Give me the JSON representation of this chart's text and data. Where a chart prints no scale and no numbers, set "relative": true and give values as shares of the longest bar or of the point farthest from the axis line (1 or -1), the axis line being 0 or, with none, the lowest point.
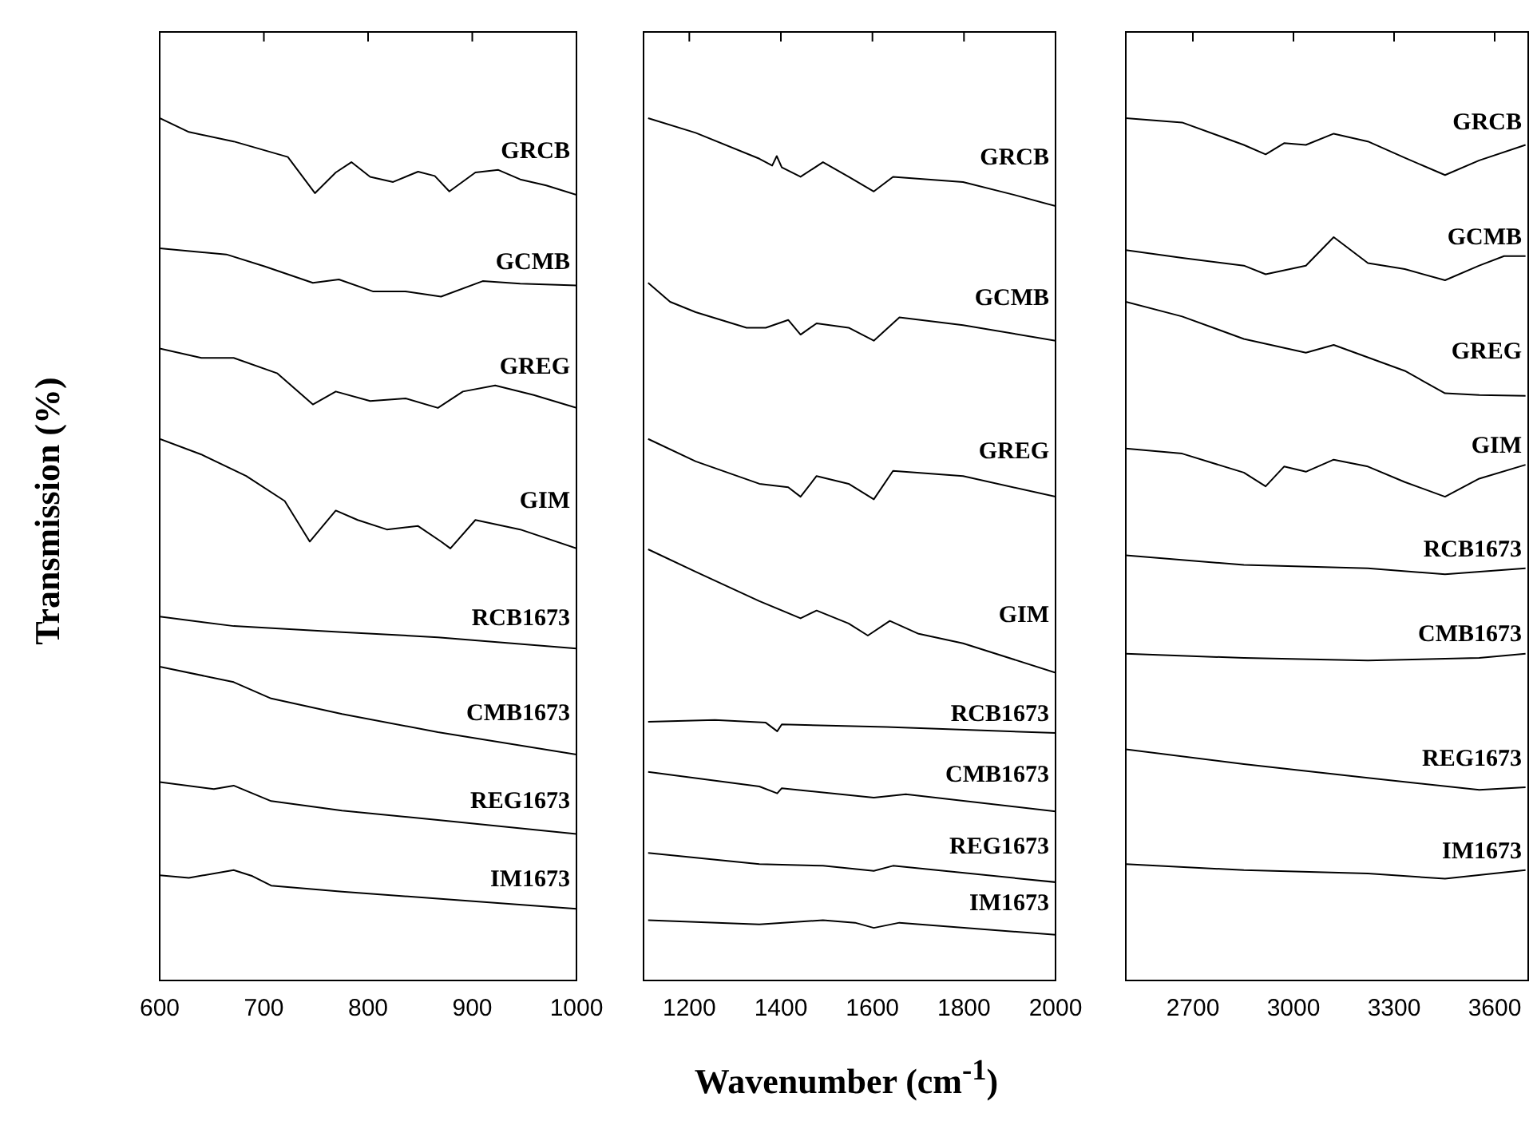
{
  "chart_data": [
    {
      "type": "line",
      "relative": true,
      "ylabel": "Transmission (%)",
      "xlim": [
        600,
        1000
      ],
      "xticks": [
        600,
        700,
        800,
        900,
        1000
      ],
      "grid": false,
      "legend": false,
      "series": [
        {
          "name": "GRCB",
          "color": "#000000",
          "x": [
            600,
            628,
            671,
            723,
            749,
            769,
            784,
            802,
            824,
            848,
            864,
            878,
            903,
            925,
            946,
            971,
            1000
          ],
          "values": [
            1.0,
            0.984,
            0.973,
            0.955,
            0.913,
            0.937,
            0.949,
            0.932,
            0.926,
            0.938,
            0.933,
            0.915,
            0.937,
            0.94,
            0.929,
            0.922,
            0.911
          ]
        },
        {
          "name": "GCMB",
          "color": "#000000",
          "x": [
            600,
            664,
            701,
            747,
            772,
            805,
            836,
            870,
            910,
            946,
            1000
          ],
          "values": [
            0.849,
            0.842,
            0.828,
            0.809,
            0.813,
            0.799,
            0.799,
            0.793,
            0.811,
            0.808,
            0.806
          ]
        },
        {
          "name": "GREG",
          "color": "#000000",
          "x": [
            600,
            640,
            671,
            713,
            747,
            769,
            802,
            836,
            867,
            891,
            922,
            959,
            1000
          ],
          "values": [
            0.733,
            0.722,
            0.722,
            0.704,
            0.668,
            0.683,
            0.672,
            0.675,
            0.664,
            0.683,
            0.69,
            0.679,
            0.664
          ]
        },
        {
          "name": "GIM",
          "color": "#000000",
          "x": [
            600,
            640,
            683,
            720,
            744,
            769,
            790,
            818,
            848,
            870,
            879,
            903,
            946,
            1000
          ],
          "values": [
            0.628,
            0.61,
            0.585,
            0.556,
            0.509,
            0.545,
            0.534,
            0.523,
            0.527,
            0.509,
            0.501,
            0.534,
            0.523,
            0.501
          ]
        },
        {
          "name": "RCB1673",
          "color": "#000000",
          "x": [
            600,
            671,
            775,
            867,
            1000
          ],
          "values": [
            0.422,
            0.411,
            0.404,
            0.398,
            0.385
          ]
        },
        {
          "name": "CMB1673",
          "color": "#000000",
          "x": [
            600,
            671,
            707,
            775,
            867,
            1000
          ],
          "values": [
            0.364,
            0.346,
            0.327,
            0.309,
            0.288,
            0.262
          ]
        },
        {
          "name": "REG1673",
          "color": "#000000",
          "x": [
            600,
            652,
            671,
            707,
            775,
            867,
            1000
          ],
          "values": [
            0.23,
            0.222,
            0.226,
            0.208,
            0.197,
            0.186,
            0.17
          ]
        },
        {
          "name": "IM1673",
          "color": "#000000",
          "x": [
            600,
            628,
            671,
            689,
            707,
            775,
            867,
            1000
          ],
          "values": [
            0.122,
            0.119,
            0.128,
            0.121,
            0.11,
            0.103,
            0.095,
            0.083
          ]
        }
      ]
    },
    {
      "type": "line",
      "relative": true,
      "xlabel": "Wavenumber (cm$^{-1}$)",
      "xlim": [
        1100,
        2000
      ],
      "xticks": [
        1200,
        1400,
        1600,
        1800,
        2000
      ],
      "grid": false,
      "legend": false,
      "series": [
        {
          "name": "GRCB",
          "color": "#000000",
          "x": [
            1110,
            1214,
            1353,
            1381,
            1391,
            1402,
            1443,
            1492,
            1548,
            1603,
            1645,
            1798,
            1910,
            2000
          ],
          "values": [
            1.0,
            0.983,
            0.953,
            0.945,
            0.956,
            0.943,
            0.932,
            0.949,
            0.932,
            0.915,
            0.932,
            0.926,
            0.911,
            0.898
          ]
        },
        {
          "name": "GCMB",
          "color": "#000000",
          "x": [
            1110,
            1158,
            1214,
            1325,
            1367,
            1416,
            1443,
            1478,
            1548,
            1603,
            1659,
            1798,
            2000
          ],
          "values": [
            0.809,
            0.787,
            0.775,
            0.757,
            0.757,
            0.766,
            0.749,
            0.762,
            0.757,
            0.742,
            0.769,
            0.76,
            0.742
          ]
        },
        {
          "name": "GREG",
          "color": "#000000",
          "x": [
            1110,
            1214,
            1353,
            1416,
            1443,
            1478,
            1548,
            1603,
            1645,
            1798,
            2000
          ],
          "values": [
            0.628,
            0.602,
            0.576,
            0.572,
            0.561,
            0.585,
            0.576,
            0.558,
            0.591,
            0.585,
            0.561
          ]
        },
        {
          "name": "GIM",
          "color": "#000000",
          "x": [
            1110,
            1214,
            1353,
            1443,
            1478,
            1548,
            1590,
            1638,
            1701,
            1798,
            2000
          ],
          "values": [
            0.5,
            0.474,
            0.44,
            0.42,
            0.429,
            0.414,
            0.4,
            0.417,
            0.402,
            0.391,
            0.357
          ]
        },
        {
          "name": "RCB1673",
          "color": "#000000",
          "x": [
            1110,
            1256,
            1367,
            1392,
            1402,
            1631,
            2000
          ],
          "values": [
            0.3,
            0.302,
            0.299,
            0.289,
            0.297,
            0.294,
            0.287
          ]
        },
        {
          "name": "CMB1673",
          "color": "#000000",
          "x": [
            1110,
            1353,
            1392,
            1402,
            1603,
            1673,
            2000
          ],
          "values": [
            0.242,
            0.225,
            0.217,
            0.223,
            0.212,
            0.216,
            0.196
          ]
        },
        {
          "name": "REG1673",
          "color": "#000000",
          "x": [
            1110,
            1353,
            1492,
            1603,
            1645,
            2000
          ],
          "values": [
            0.148,
            0.135,
            0.133,
            0.127,
            0.133,
            0.114
          ]
        },
        {
          "name": "IM1673",
          "color": "#000000",
          "x": [
            1110,
            1353,
            1492,
            1562,
            1603,
            1659,
            2000
          ],
          "values": [
            0.07,
            0.065,
            0.07,
            0.067,
            0.061,
            0.067,
            0.053
          ]
        }
      ]
    },
    {
      "type": "line",
      "relative": true,
      "xlim": [
        2500,
        3700
      ],
      "xticks": [
        2700,
        3000,
        3300,
        3600
      ],
      "grid": false,
      "legend": false,
      "series": [
        {
          "name": "GRCB",
          "color": "#000000",
          "x": [
            2500,
            2668,
            2852,
            2917,
            2972,
            3037,
            3120,
            3222,
            3332,
            3452,
            3554,
            3692
          ],
          "values": [
            1.0,
            0.995,
            0.969,
            0.958,
            0.971,
            0.969,
            0.982,
            0.973,
            0.954,
            0.934,
            0.951,
            0.969
          ]
        },
        {
          "name": "GCMB",
          "color": "#000000",
          "x": [
            2500,
            2668,
            2852,
            2917,
            3037,
            3120,
            3222,
            3332,
            3452,
            3554,
            3628,
            3692
          ],
          "values": [
            0.847,
            0.838,
            0.829,
            0.819,
            0.829,
            0.862,
            0.832,
            0.825,
            0.812,
            0.829,
            0.84,
            0.84
          ]
        },
        {
          "name": "GREG",
          "color": "#000000",
          "x": [
            2500,
            2668,
            2852,
            3037,
            3120,
            3332,
            3452,
            3554,
            3692
          ],
          "values": [
            0.787,
            0.77,
            0.744,
            0.728,
            0.737,
            0.707,
            0.681,
            0.679,
            0.678
          ]
        },
        {
          "name": "GIM",
          "color": "#000000",
          "x": [
            2500,
            2668,
            2852,
            2917,
            2972,
            3037,
            3120,
            3222,
            3332,
            3452,
            3554,
            3692
          ],
          "values": [
            0.617,
            0.611,
            0.589,
            0.573,
            0.596,
            0.59,
            0.604,
            0.596,
            0.578,
            0.561,
            0.582,
            0.598
          ]
        },
        {
          "name": "RCB1673",
          "color": "#000000",
          "x": [
            2500,
            2852,
            3222,
            3452,
            3692
          ],
          "values": [
            0.493,
            0.482,
            0.478,
            0.471,
            0.478
          ]
        },
        {
          "name": "CMB1673",
          "color": "#000000",
          "x": [
            2500,
            2852,
            3222,
            3554,
            3692
          ],
          "values": [
            0.379,
            0.374,
            0.371,
            0.374,
            0.379
          ]
        },
        {
          "name": "REG1673",
          "color": "#000000",
          "x": [
            2500,
            2852,
            3222,
            3554,
            3692
          ],
          "values": [
            0.268,
            0.251,
            0.235,
            0.221,
            0.224
          ]
        },
        {
          "name": "IM1673",
          "color": "#000000",
          "x": [
            2500,
            2852,
            3222,
            3452,
            3692
          ],
          "values": [
            0.135,
            0.128,
            0.124,
            0.118,
            0.128
          ]
        }
      ]
    }
  ]
}
